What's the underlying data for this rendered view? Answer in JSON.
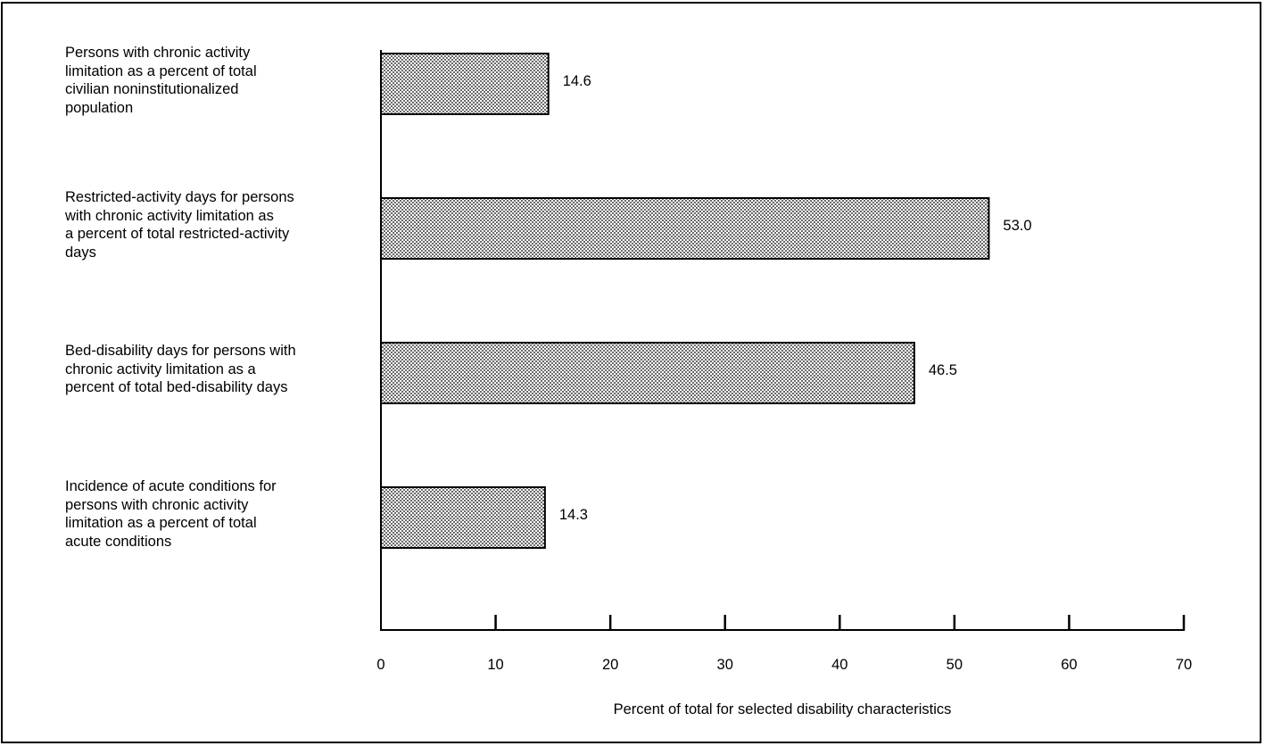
{
  "chart_data": {
    "type": "bar",
    "orientation": "horizontal",
    "categories": [
      "Persons with chronic activity\nlimitation as a percent of total\ncivilian noninstitutionalized\npopulation",
      "Restricted-activity days for persons\nwith chronic activity limitation as\na percent of total restricted-activity\ndays",
      "Bed-disability days for persons with\nchronic activity limitation as a\npercent of total bed-disability days",
      "Incidence of acute conditions for\npersons with chronic activity\nlimitation as a percent of total\nacute conditions"
    ],
    "values": [
      14.6,
      53.0,
      46.5,
      14.3
    ],
    "value_labels": [
      "14.6",
      "53.0",
      "46.5",
      "14.3"
    ],
    "xlabel": "Percent of total for selected disability characteristics",
    "ylabel": "",
    "xlim": [
      0,
      70
    ],
    "xticks": [
      0,
      10,
      20,
      30,
      40,
      50,
      60,
      70
    ],
    "xtick_labels": [
      "0",
      "10",
      "20",
      "30",
      "40",
      "50",
      "60",
      "70"
    ],
    "grid": false,
    "bar_fill": "stippled gray"
  }
}
